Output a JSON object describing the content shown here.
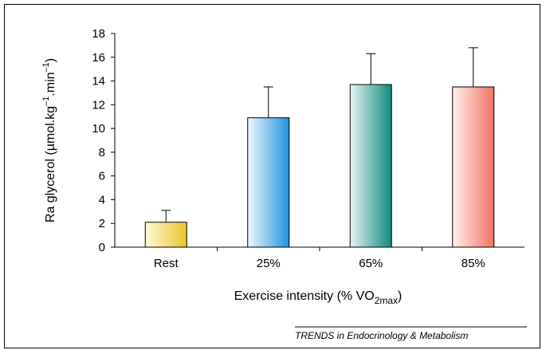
{
  "chart_data": {
    "type": "bar",
    "categories": [
      "Rest",
      "25%",
      "65%",
      "85%"
    ],
    "values": [
      2.1,
      10.9,
      13.7,
      13.5
    ],
    "error_up": [
      1.0,
      2.6,
      2.6,
      3.3
    ],
    "colors": [
      [
        "#fff9d6",
        "#ecc22e"
      ],
      [
        "#eef7ff",
        "#1f93dc"
      ],
      [
        "#e6f4f1",
        "#0f8a7f"
      ],
      [
        "#fff0ee",
        "#ef7462"
      ]
    ],
    "ylim": [
      0,
      18
    ],
    "yticks": [
      0,
      2,
      4,
      6,
      8,
      10,
      12,
      14,
      16,
      18
    ],
    "ylabel_main": "Ra glycerol (µmol.kg",
    "ylabel_sup1": "–1",
    "ylabel_mid": ".min",
    "ylabel_sup2": "–1",
    "ylabel_end": ")",
    "xlabel_main": "Exercise intensity (% VO",
    "xlabel_sub": "2max",
    "xlabel_end": ")",
    "grid": false,
    "legend": "none"
  },
  "credit": "TRENDS in Endocrinology & Metabolism"
}
